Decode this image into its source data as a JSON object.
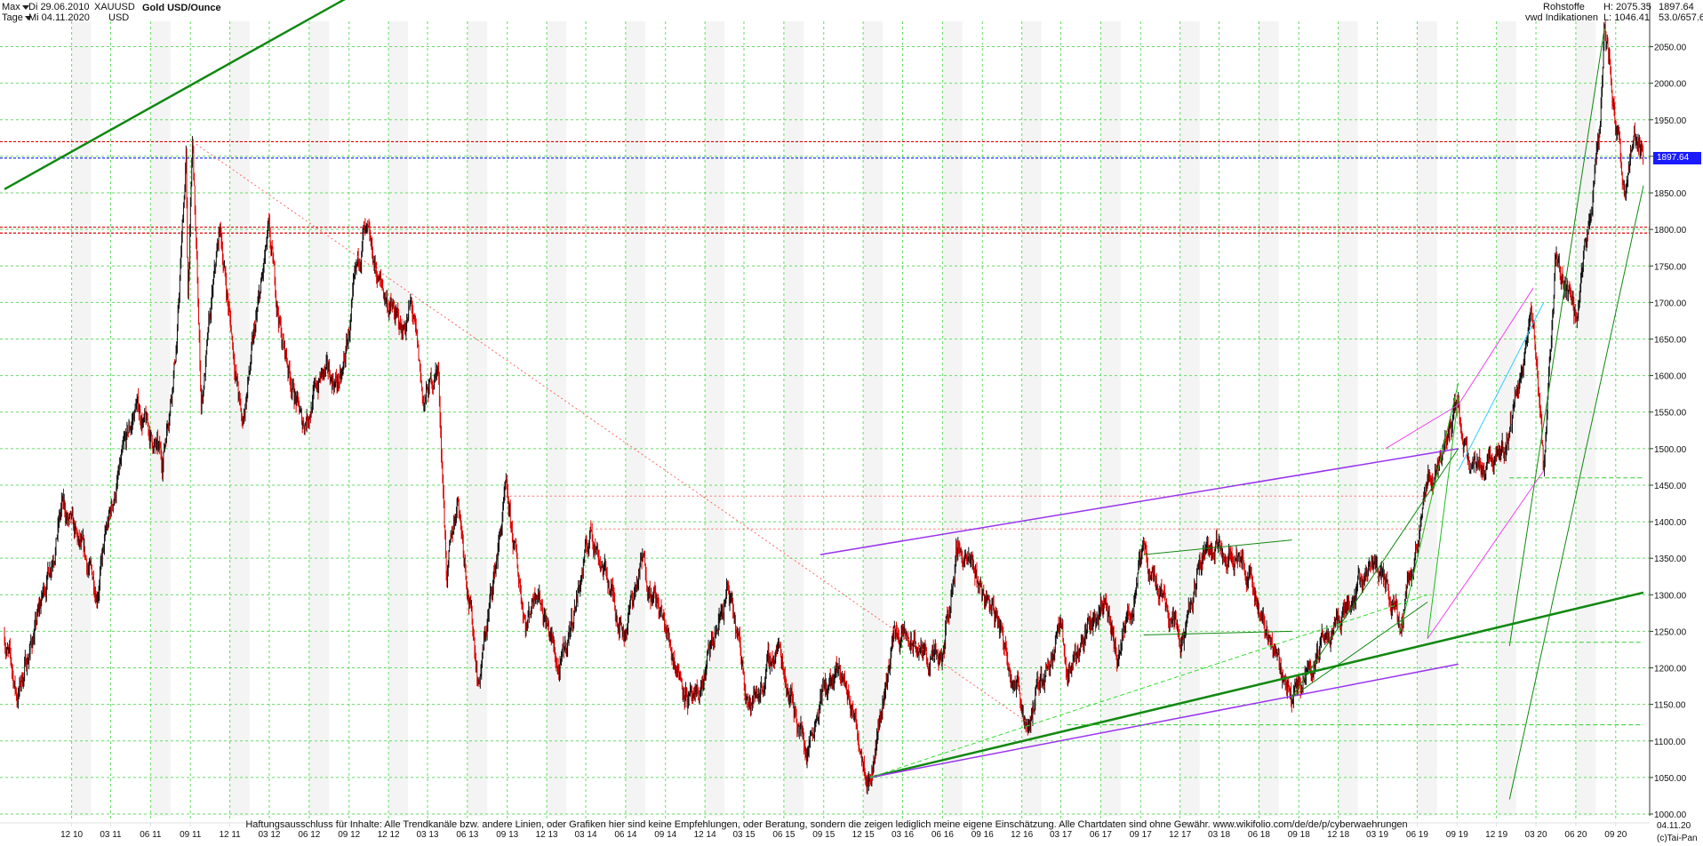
{
  "header": {
    "period_select": "Max",
    "date_from": "Di 29.06.2010",
    "interval_select": "Tage",
    "date_to": "Mi 04.11.2020",
    "symbol": "XAUUSD",
    "currency": "USD",
    "title": "Gold USD/Ounce",
    "category": "Rohstoffe",
    "source": "vwd Indikationen",
    "high_label": "H: 2075.35",
    "low_label": "L: 1046.41",
    "last_value": "1897.64",
    "change_value": "53.0/657.6"
  },
  "footer": {
    "disclaimer": "Haftungsausschluss für Inhalte: Alle Trendkanäle bzw. andere Linien, oder Grafiken hier sind keine Empfehlungen, oder Beratung, sondern die zeigen lediglich meine eigene Einschätzung. Alle Chartdaten sind ohne Gewähr.  www.wikifolio.com/de/de/p/cyberwaehrungen",
    "copyright": "(c)Tai-Pan",
    "current_date": "04.11.20"
  },
  "colors": {
    "candle_up": "#111111",
    "candle_down": "#e00000",
    "grid": "#66dd66",
    "trend_dark_green": "#118811",
    "trend_green": "#22bb22",
    "trend_purple": "#9933ee",
    "trend_magenta": "#ee44ee",
    "trend_cyan": "#33ccff",
    "level_red": "#e00000",
    "level_blue": "#2233ff",
    "price_tag": "#1a1aff"
  },
  "chart_data": {
    "type": "candlestick",
    "title": "Gold USD/Ounce",
    "x_range": [
      "2010-06-29",
      "2020-11-04"
    ],
    "ylim": [
      1000,
      2075
    ],
    "y_ticks": [
      1000,
      1050,
      1100,
      1150,
      1200,
      1250,
      1300,
      1350,
      1400,
      1450,
      1500,
      1550,
      1600,
      1650,
      1700,
      1750,
      1800,
      1850,
      1900,
      1950,
      2000,
      2050
    ],
    "y_tick_labels": [
      "1000.00",
      "1050.00",
      "1100.00",
      "1150.00",
      "1200.00",
      "1250.00",
      "1300.00",
      "1350.00",
      "1400.00",
      "1450.00",
      "1500.00",
      "1550.00",
      "1600.00",
      "1650.00",
      "1700.00",
      "1750.00",
      "1800.00",
      "1850.00",
      "1900.00",
      "1950.00",
      "2000.00",
      "2050.00"
    ],
    "x_ticks": [
      {
        "label": "12 10",
        "date": "2010-12-01"
      },
      {
        "label": "03 11",
        "date": "2011-03-01"
      },
      {
        "label": "06 11",
        "date": "2011-06-01"
      },
      {
        "label": "09 11",
        "date": "2011-09-01"
      },
      {
        "label": "12 11",
        "date": "2011-12-01"
      },
      {
        "label": "03 12",
        "date": "2012-03-01"
      },
      {
        "label": "06 12",
        "date": "2012-06-01"
      },
      {
        "label": "09 12",
        "date": "2012-09-01"
      },
      {
        "label": "12 12",
        "date": "2012-12-01"
      },
      {
        "label": "03 13",
        "date": "2013-03-01"
      },
      {
        "label": "06 13",
        "date": "2013-06-01"
      },
      {
        "label": "09 13",
        "date": "2013-09-01"
      },
      {
        "label": "12 13",
        "date": "2013-12-01"
      },
      {
        "label": "03 14",
        "date": "2014-03-01"
      },
      {
        "label": "06 14",
        "date": "2014-06-01"
      },
      {
        "label": "09 14",
        "date": "2014-09-01"
      },
      {
        "label": "12 14",
        "date": "2014-12-01"
      },
      {
        "label": "03 15",
        "date": "2015-03-01"
      },
      {
        "label": "06 15",
        "date": "2015-06-01"
      },
      {
        "label": "09 15",
        "date": "2015-09-01"
      },
      {
        "label": "12 15",
        "date": "2015-12-01"
      },
      {
        "label": "03 16",
        "date": "2016-03-01"
      },
      {
        "label": "06 16",
        "date": "2016-06-01"
      },
      {
        "label": "09 16",
        "date": "2016-09-01"
      },
      {
        "label": "12 16",
        "date": "2016-12-01"
      },
      {
        "label": "03 17",
        "date": "2017-03-01"
      },
      {
        "label": "06 17",
        "date": "2017-06-01"
      },
      {
        "label": "09 17",
        "date": "2017-09-01"
      },
      {
        "label": "12 17",
        "date": "2017-12-01"
      },
      {
        "label": "03 18",
        "date": "2018-03-01"
      },
      {
        "label": "06 18",
        "date": "2018-06-01"
      },
      {
        "label": "09 18",
        "date": "2018-09-01"
      },
      {
        "label": "12 18",
        "date": "2018-12-01"
      },
      {
        "label": "03 19",
        "date": "2019-03-01"
      },
      {
        "label": "06 19",
        "date": "2019-06-01"
      },
      {
        "label": "09 19",
        "date": "2019-09-01"
      },
      {
        "label": "12 19",
        "date": "2019-12-01"
      },
      {
        "label": "03 20",
        "date": "2020-03-01"
      },
      {
        "label": "06 20",
        "date": "2020-06-01"
      },
      {
        "label": "09 20",
        "date": "2020-09-01"
      }
    ],
    "price_path": [
      [
        "2010-06-29",
        1245
      ],
      [
        "2010-07-28",
        1160
      ],
      [
        "2010-09-15",
        1270
      ],
      [
        "2010-11-09",
        1420
      ],
      [
        "2010-12-20",
        1360
      ],
      [
        "2011-01-28",
        1310
      ],
      [
        "2011-03-07",
        1430
      ],
      [
        "2011-04-29",
        1560
      ],
      [
        "2011-06-28",
        1480
      ],
      [
        "2011-08-01",
        1650
      ],
      [
        "2011-08-22",
        1900
      ],
      [
        "2011-08-26",
        1700
      ],
      [
        "2011-09-06",
        1920
      ],
      [
        "2011-09-26",
        1560
      ],
      [
        "2011-11-08",
        1800
      ],
      [
        "2011-12-29",
        1530
      ],
      [
        "2012-02-28",
        1790
      ],
      [
        "2012-03-30",
        1650
      ],
      [
        "2012-05-16",
        1530
      ],
      [
        "2012-06-29",
        1600
      ],
      [
        "2012-08-15",
        1590
      ],
      [
        "2012-10-04",
        1795
      ],
      [
        "2012-11-15",
        1720
      ],
      [
        "2012-12-31",
        1660
      ],
      [
        "2013-01-23",
        1695
      ],
      [
        "2013-02-20",
        1560
      ],
      [
        "2013-03-25",
        1615
      ],
      [
        "2013-04-15",
        1320
      ],
      [
        "2013-05-10",
        1440
      ],
      [
        "2013-06-27",
        1180
      ],
      [
        "2013-08-28",
        1435
      ],
      [
        "2013-10-15",
        1260
      ],
      [
        "2013-11-08",
        1320
      ],
      [
        "2013-12-31",
        1190
      ],
      [
        "2014-03-14",
        1390
      ],
      [
        "2014-05-28",
        1250
      ],
      [
        "2014-07-10",
        1345
      ],
      [
        "2014-10-06",
        1190
      ],
      [
        "2014-11-07",
        1140
      ],
      [
        "2015-01-22",
        1305
      ],
      [
        "2015-03-17",
        1145
      ],
      [
        "2015-05-18",
        1230
      ],
      [
        "2015-07-24",
        1085
      ],
      [
        "2015-08-24",
        1165
      ],
      [
        "2015-10-14",
        1190
      ],
      [
        "2015-12-17",
        1050
      ],
      [
        "2016-02-11",
        1250
      ],
      [
        "2016-05-30",
        1200
      ],
      [
        "2016-07-06",
        1370
      ],
      [
        "2016-10-04",
        1270
      ],
      [
        "2016-12-15",
        1125
      ],
      [
        "2017-02-27",
        1260
      ],
      [
        "2017-03-15",
        1195
      ],
      [
        "2017-06-06",
        1295
      ],
      [
        "2017-07-10",
        1205
      ],
      [
        "2017-09-08",
        1355
      ],
      [
        "2017-12-12",
        1240
      ],
      [
        "2018-01-25",
        1365
      ],
      [
        "2018-04-11",
        1365
      ],
      [
        "2018-08-16",
        1160
      ],
      [
        "2018-10-26",
        1235
      ],
      [
        "2019-02-20",
        1345
      ],
      [
        "2019-04-23",
        1270
      ],
      [
        "2019-06-25",
        1440
      ],
      [
        "2019-09-04",
        1560
      ],
      [
        "2019-10-01",
        1460
      ],
      [
        "2019-12-31",
        1520
      ],
      [
        "2020-02-24",
        1690
      ],
      [
        "2020-03-19",
        1460
      ],
      [
        "2020-04-14",
        1750
      ],
      [
        "2020-06-05",
        1670
      ],
      [
        "2020-07-27",
        1940
      ],
      [
        "2020-08-06",
        2075
      ],
      [
        "2020-09-24",
        1850
      ],
      [
        "2020-10-12",
        1930
      ],
      [
        "2020-11-04",
        1897.64
      ]
    ],
    "horizontal_levels": [
      {
        "value": 1920,
        "color": "#e00000",
        "style": "dashed"
      },
      {
        "value": 1897.64,
        "color": "#2233ff",
        "style": "dashed"
      },
      {
        "value": 1803,
        "color": "#e00000",
        "style": "dashed"
      },
      {
        "value": 1795,
        "color": "#e00000",
        "style": "dashed"
      }
    ],
    "trendlines": [
      {
        "from": [
          "2010-06-29",
          1855
        ],
        "to": [
          "2013-01-20",
          2165
        ],
        "color": "#118811",
        "width": 2.5,
        "style": "solid"
      },
      {
        "from": [
          "2011-09-06",
          1920
        ],
        "to": [
          "2016-12-15",
          1125
        ],
        "color": "#ff6666",
        "width": 1,
        "style": "dotted"
      },
      {
        "from": [
          "2015-12-17",
          1050
        ],
        "to": [
          "2020-11-04",
          1303
        ],
        "color": "#118811",
        "width": 2.5,
        "style": "solid"
      },
      {
        "from": [
          "2014-03-14",
          1390
        ],
        "to": [
          "2019-06-25",
          1390
        ],
        "color": "#ff6666",
        "width": 1,
        "style": "dotted"
      },
      {
        "from": [
          "2013-08-28",
          1435
        ],
        "to": [
          "2019-06-25",
          1435
        ],
        "color": "#ff6666",
        "width": 1,
        "style": "dotted"
      },
      {
        "from": [
          "2015-08-24",
          1355
        ],
        "to": [
          "2019-09-04",
          1500
        ],
        "color": "#9933ee",
        "width": 1.5,
        "style": "solid"
      },
      {
        "from": [
          "2015-12-17",
          1050
        ],
        "to": [
          "2019-09-04",
          1205
        ],
        "color": "#9933ee",
        "width": 1.5,
        "style": "solid"
      },
      {
        "from": [
          "2015-12-17",
          1050
        ],
        "to": [
          "2019-06-25",
          1300
        ],
        "color": "#33dd33",
        "width": 1,
        "style": "dashed"
      },
      {
        "from": [
          "2017-09-08",
          1355
        ],
        "to": [
          "2018-08-16",
          1375
        ],
        "color": "#118811",
        "width": 1,
        "style": "solid"
      },
      {
        "from": [
          "2017-09-08",
          1245
        ],
        "to": [
          "2018-08-16",
          1250
        ],
        "color": "#118811",
        "width": 1,
        "style": "solid"
      },
      {
        "from": [
          "2018-08-16",
          1160
        ],
        "to": [
          "2019-09-04",
          1500
        ],
        "color": "#118811",
        "width": 1,
        "style": "solid"
      },
      {
        "from": [
          "2018-08-16",
          1160
        ],
        "to": [
          "2019-06-25",
          1290
        ],
        "color": "#118811",
        "width": 1,
        "style": "solid"
      },
      {
        "from": [
          "2019-06-25",
          1240
        ],
        "to": [
          "2019-09-04",
          1570
        ],
        "color": "#22bb22",
        "width": 1,
        "style": "solid"
      },
      {
        "from": [
          "2019-04-23",
          1250
        ],
        "to": [
          "2019-09-04",
          1590
        ],
        "color": "#22bb22",
        "width": 1,
        "style": "solid"
      },
      {
        "from": [
          "2019-12-31",
          1230
        ],
        "to": [
          "2020-08-06",
          2075
        ],
        "color": "#118811",
        "width": 1,
        "style": "solid"
      },
      {
        "from": [
          "2019-12-31",
          1020
        ],
        "to": [
          "2020-11-04",
          1860
        ],
        "color": "#118811",
        "width": 1,
        "style": "solid"
      },
      {
        "from": [
          "2019-09-04",
          1560
        ],
        "to": [
          "2020-02-24",
          1720
        ],
        "color": "#ee44ee",
        "width": 1,
        "style": "solid"
      },
      {
        "from": [
          "2019-03-20",
          1500
        ],
        "to": [
          "2019-09-04",
          1560
        ],
        "color": "#ee44ee",
        "width": 1,
        "style": "solid"
      },
      {
        "from": [
          "2019-09-04",
          1470
        ],
        "to": [
          "2020-03-19",
          1700
        ],
        "color": "#33ccff",
        "width": 1,
        "style": "solid"
      },
      {
        "from": [
          "2019-06-25",
          1240
        ],
        "to": [
          "2020-03-19",
          1470
        ],
        "color": "#ee44ee",
        "width": 1,
        "style": "solid"
      },
      {
        "from": [
          "2019-12-31",
          1460
        ],
        "to": [
          "2020-11-04",
          1460
        ],
        "color": "#33cc33",
        "width": 1,
        "style": "dashed"
      },
      {
        "from": [
          "2019-09-04",
          1235
        ],
        "to": [
          "2020-11-04",
          1235
        ],
        "color": "#33cc33",
        "width": 1,
        "style": "dashed"
      },
      {
        "from": [
          "2017-03-15",
          1122
        ],
        "to": [
          "2020-11-04",
          1122
        ],
        "color": "#33cc33",
        "width": 1,
        "style": "dashed"
      }
    ]
  }
}
